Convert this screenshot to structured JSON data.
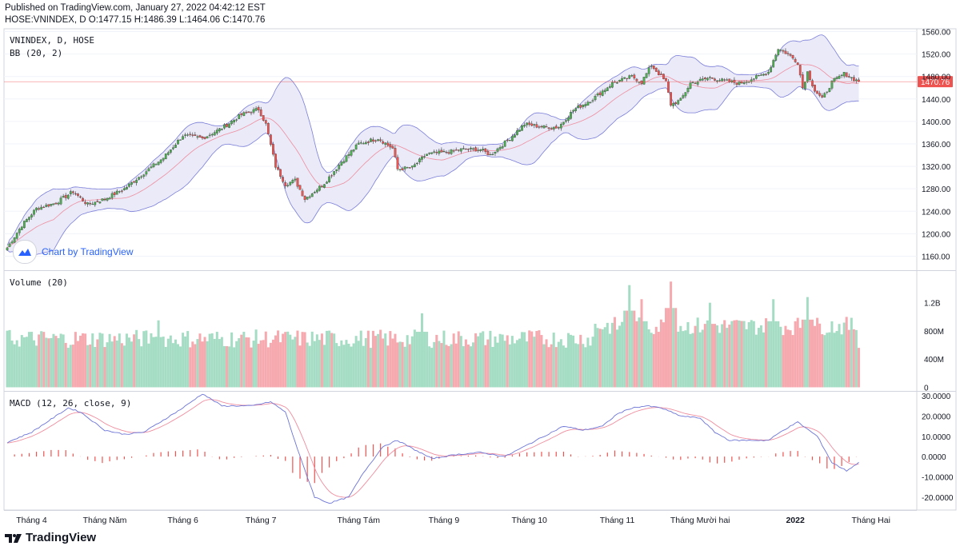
{
  "header": {
    "published": "Published on TradingView.com, January 27, 2022 04:42:12 EST",
    "symbol_line": "HOSE:VNINDEX, D O:1477.15 H:1486.39 L:1464.06 C:1470.76"
  },
  "footer": {
    "brand": "TradingView"
  },
  "watermark": {
    "text": "Chart by TradingView"
  },
  "colors": {
    "up": "#26a69a",
    "down": "#ef5350",
    "up_body": "#4caf50",
    "down_body": "#ef5350",
    "bb_fill": "#e8e8f7",
    "bb_line": "#7b7ed8",
    "basis": "#ef8d9e",
    "macd": "#6c74d6",
    "signal": "#ef8d9e",
    "last_price": "#ef5350"
  },
  "chart_data": [
    {
      "type": "candlestick",
      "pane": "price",
      "legend": [
        "VNINDEX, D, HOSE",
        "BB (20, 2)"
      ],
      "ylim": [
        1135,
        1565
      ],
      "yticks": [
        "1560.00",
        "1520.00",
        "1480.00",
        "1440.00",
        "1400.00",
        "1360.00",
        "1320.00",
        "1280.00",
        "1240.00",
        "1200.00",
        "1160.00"
      ],
      "ytick_values": [
        1560,
        1520,
        1480,
        1440,
        1400,
        1360,
        1320,
        1280,
        1240,
        1200,
        1160
      ],
      "last_price": 1470.76,
      "last_price_label": "1470.76",
      "close_anchors": [
        [
          0,
          1175
        ],
        [
          6,
          1215
        ],
        [
          12,
          1245
        ],
        [
          20,
          1255
        ],
        [
          27,
          1275
        ],
        [
          33,
          1252
        ],
        [
          40,
          1262
        ],
        [
          48,
          1280
        ],
        [
          56,
          1308
        ],
        [
          64,
          1335
        ],
        [
          72,
          1375
        ],
        [
          80,
          1370
        ],
        [
          88,
          1388
        ],
        [
          96,
          1412
        ],
        [
          103,
          1422
        ],
        [
          106,
          1395
        ],
        [
          110,
          1320
        ],
        [
          114,
          1288
        ],
        [
          118,
          1295
        ],
        [
          122,
          1262
        ],
        [
          130,
          1290
        ],
        [
          137,
          1328
        ],
        [
          144,
          1360
        ],
        [
          152,
          1370
        ],
        [
          158,
          1352
        ],
        [
          160,
          1315
        ],
        [
          166,
          1318
        ],
        [
          172,
          1342
        ],
        [
          180,
          1345
        ],
        [
          186,
          1350
        ],
        [
          194,
          1350
        ],
        [
          198,
          1340
        ],
        [
          206,
          1370
        ],
        [
          212,
          1395
        ],
        [
          220,
          1390
        ],
        [
          226,
          1390
        ],
        [
          232,
          1420
        ],
        [
          240,
          1440
        ],
        [
          248,
          1468
        ],
        [
          256,
          1480
        ],
        [
          260,
          1470
        ],
        [
          264,
          1500
        ],
        [
          270,
          1470
        ],
        [
          272,
          1430
        ],
        [
          276,
          1438
        ],
        [
          280,
          1468
        ],
        [
          288,
          1478
        ],
        [
          294,
          1472
        ],
        [
          300,
          1468
        ],
        [
          308,
          1480
        ],
        [
          312,
          1488
        ],
        [
          316,
          1530
        ],
        [
          320,
          1520
        ],
        [
          324,
          1505
        ],
        [
          326,
          1460
        ],
        [
          328,
          1488
        ],
        [
          331,
          1455
        ],
        [
          334,
          1440
        ],
        [
          338,
          1470
        ],
        [
          343,
          1485
        ],
        [
          349,
          1470.76
        ]
      ],
      "count": 350
    },
    {
      "type": "bar",
      "pane": "volume",
      "legend": "Volume (20)",
      "ylim": [
        -40000000,
        1650000000
      ],
      "yticks": [
        "1.2B",
        "800M",
        "400M",
        "0"
      ],
      "ytick_values": [
        1200000000,
        800000000,
        400000000,
        0
      ],
      "spikes": [
        [
          62,
          950000000
        ],
        [
          170,
          1050000000
        ],
        [
          255,
          1450000000
        ],
        [
          260,
          1250000000
        ],
        [
          272,
          1500000000
        ],
        [
          288,
          1200000000
        ],
        [
          314,
          1250000000
        ],
        [
          328,
          1280000000
        ]
      ]
    },
    {
      "type": "line",
      "pane": "macd",
      "legend": "MACD (12, 26, close, 9)",
      "ylim": [
        -26,
        32
      ],
      "yticks": [
        "30.0000",
        "20.0000",
        "10.0000",
        "0.0000",
        "-10.0000",
        "-20.0000"
      ],
      "ytick_values": [
        30,
        20,
        10,
        0,
        -10,
        -20
      ],
      "macd_anchors": [
        [
          0,
          7
        ],
        [
          10,
          12
        ],
        [
          25,
          24
        ],
        [
          30,
          22
        ],
        [
          40,
          13
        ],
        [
          48,
          11
        ],
        [
          56,
          12
        ],
        [
          64,
          18
        ],
        [
          72,
          24
        ],
        [
          80,
          31
        ],
        [
          88,
          25
        ],
        [
          100,
          25
        ],
        [
          108,
          27
        ],
        [
          114,
          22
        ],
        [
          120,
          0
        ],
        [
          126,
          -20
        ],
        [
          132,
          -23
        ],
        [
          140,
          -20
        ],
        [
          146,
          -8
        ],
        [
          154,
          5
        ],
        [
          160,
          8
        ],
        [
          166,
          4
        ],
        [
          174,
          -1
        ],
        [
          184,
          1
        ],
        [
          194,
          2
        ],
        [
          204,
          0
        ],
        [
          212,
          5
        ],
        [
          220,
          10
        ],
        [
          228,
          15
        ],
        [
          236,
          13
        ],
        [
          244,
          15
        ],
        [
          250,
          21
        ],
        [
          256,
          24
        ],
        [
          262,
          25
        ],
        [
          268,
          24
        ],
        [
          276,
          20
        ],
        [
          284,
          19
        ],
        [
          290,
          12
        ],
        [
          296,
          8
        ],
        [
          304,
          8
        ],
        [
          312,
          8
        ],
        [
          318,
          13
        ],
        [
          324,
          17
        ],
        [
          332,
          10
        ],
        [
          338,
          -3
        ],
        [
          344,
          -7
        ],
        [
          349,
          -3
        ]
      ]
    }
  ],
  "x_axis": {
    "labels": [
      {
        "text": "Tháng 4",
        "i": 10,
        "bold": false
      },
      {
        "text": "Tháng Năm",
        "i": 40,
        "bold": false
      },
      {
        "text": "Tháng 6",
        "i": 72,
        "bold": false
      },
      {
        "text": "Tháng 7",
        "i": 104,
        "bold": false
      },
      {
        "text": "Tháng Tám",
        "i": 144,
        "bold": false
      },
      {
        "text": "Tháng 9",
        "i": 179,
        "bold": false
      },
      {
        "text": "Tháng 10",
        "i": 214,
        "bold": false
      },
      {
        "text": "Tháng 11",
        "i": 250,
        "bold": false
      },
      {
        "text": "Tháng Mười hai",
        "i": 284,
        "bold": false
      },
      {
        "text": "2022",
        "i": 323,
        "bold": true
      },
      {
        "text": "Tháng Hai",
        "i": 354,
        "bold": false
      }
    ]
  }
}
